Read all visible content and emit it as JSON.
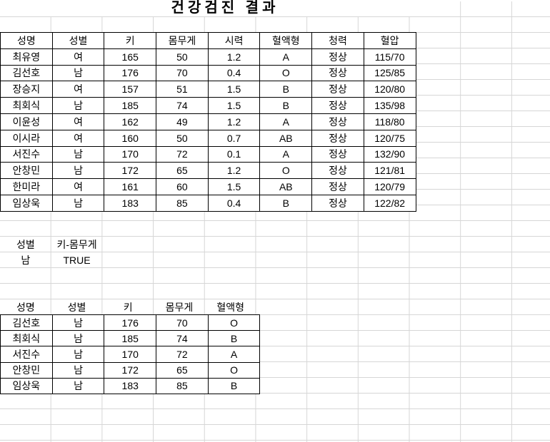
{
  "title": "건강검진 결과",
  "main_table": {
    "headers": [
      "성명",
      "성별",
      "키",
      "몸무게",
      "시력",
      "혈액형",
      "청력",
      "혈압"
    ],
    "rows": [
      [
        "최유영",
        "여",
        "165",
        "50",
        "1.2",
        "A",
        "정상",
        "115/70"
      ],
      [
        "김선호",
        "남",
        "176",
        "70",
        "0.4",
        "O",
        "정상",
        "125/85"
      ],
      [
        "장승지",
        "여",
        "157",
        "51",
        "1.5",
        "B",
        "정상",
        "120/80"
      ],
      [
        "최회식",
        "남",
        "185",
        "74",
        "1.5",
        "B",
        "정상",
        "135/98"
      ],
      [
        "이윤성",
        "여",
        "162",
        "49",
        "1.2",
        "A",
        "정상",
        "118/80"
      ],
      [
        "이시라",
        "여",
        "160",
        "50",
        "0.7",
        "AB",
        "정상",
        "120/75"
      ],
      [
        "서진수",
        "남",
        "170",
        "72",
        "0.1",
        "A",
        "정상",
        "132/90"
      ],
      [
        "안창민",
        "남",
        "172",
        "65",
        "1.2",
        "O",
        "정상",
        "121/81"
      ],
      [
        "한미라",
        "여",
        "161",
        "60",
        "1.5",
        "AB",
        "정상",
        "120/79"
      ],
      [
        "임상욱",
        "남",
        "183",
        "85",
        "0.4",
        "B",
        "정상",
        "122/82"
      ]
    ]
  },
  "criteria": {
    "headers": [
      "성별",
      "키-몸무게"
    ],
    "values": [
      "남",
      "TRUE"
    ]
  },
  "filtered_table": {
    "headers": [
      "성명",
      "성별",
      "키",
      "몸무게",
      "혈액형"
    ],
    "rows": [
      [
        "김선호",
        "남",
        "176",
        "70",
        "O"
      ],
      [
        "최회식",
        "남",
        "185",
        "74",
        "B"
      ],
      [
        "서진수",
        "남",
        "170",
        "72",
        "A"
      ],
      [
        "안창민",
        "남",
        "172",
        "65",
        "O"
      ],
      [
        "임상욱",
        "남",
        "183",
        "85",
        "B"
      ]
    ]
  },
  "colors": {
    "gridline": "#d6d6d6",
    "table_border": "#000000",
    "text": "#000000",
    "background": "#ffffff"
  }
}
